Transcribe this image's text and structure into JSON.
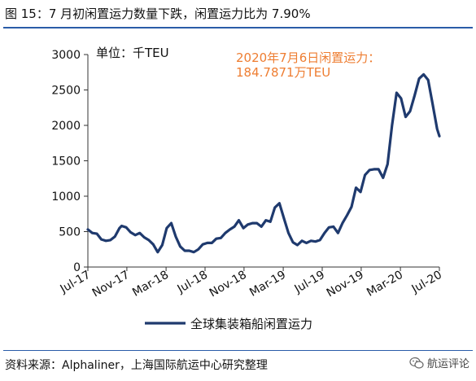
{
  "title": "图 15：7 月初闲置运力数量下跌，闲置运力比为 7.90%",
  "source": "资料来源：Alphaliner，上海国际航运中心研究整理",
  "watermark": {
    "text": "航运评论",
    "icon": "wechat-icon"
  },
  "colors": {
    "series": "#1f3a6e",
    "annotation": "#ee7d31",
    "rule": "#2a5ca8",
    "axis": "#333333"
  },
  "chart_data": {
    "type": "line",
    "unit_label": "单位：千TEU",
    "annotation": [
      "2020年7月6日闲置运力：",
      "184.7871万TEU"
    ],
    "ylim": [
      0,
      3000
    ],
    "yticks": [
      0,
      500,
      1000,
      1500,
      2000,
      2500,
      3000
    ],
    "xlim": [
      0,
      156
    ],
    "xticks": [
      {
        "label": "Jul-17",
        "x": 0
      },
      {
        "label": "Nov-17",
        "x": 17.3
      },
      {
        "label": "Mar-18",
        "x": 34.7
      },
      {
        "label": "Jul-18",
        "x": 52
      },
      {
        "label": "Nov-18",
        "x": 69.3
      },
      {
        "label": "Mar-19",
        "x": 86.7
      },
      {
        "label": "Jul-19",
        "x": 104
      },
      {
        "label": "Nov-19",
        "x": 121.3
      },
      {
        "label": "Mar-20",
        "x": 138.7
      },
      {
        "label": "Jul-20",
        "x": 156
      }
    ],
    "legend": {
      "position": "bottom",
      "entries": [
        "全球集装箱船闲置运力"
      ]
    },
    "series": [
      {
        "name": "全球集装箱船闲置运力",
        "x": [
          0,
          2,
          4,
          6,
          8,
          10,
          12,
          14,
          15,
          17,
          19,
          21,
          23,
          25,
          27,
          29,
          31,
          33,
          35,
          37,
          39,
          41,
          43,
          45,
          47,
          49,
          51,
          53,
          55,
          57,
          59,
          61,
          63,
          65,
          67,
          69,
          71,
          73,
          75,
          77,
          79,
          81,
          83,
          85,
          87,
          89,
          91,
          93,
          95,
          97,
          99,
          101,
          103,
          105,
          107,
          109,
          111,
          113,
          115,
          117,
          119,
          121,
          123,
          125,
          127,
          129,
          131,
          133,
          135,
          137,
          139,
          141,
          143,
          145,
          147,
          149,
          151,
          153,
          155,
          156
        ],
        "y": [
          530,
          480,
          470,
          390,
          370,
          380,
          430,
          550,
          580,
          560,
          490,
          450,
          480,
          420,
          380,
          320,
          210,
          310,
          550,
          620,
          430,
          290,
          230,
          230,
          210,
          250,
          320,
          340,
          340,
          400,
          410,
          480,
          530,
          570,
          660,
          550,
          600,
          620,
          620,
          570,
          660,
          640,
          840,
          900,
          690,
          480,
          350,
          310,
          370,
          340,
          370,
          360,
          380,
          480,
          560,
          570,
          480,
          620,
          730,
          850,
          1120,
          1060,
          1300,
          1370,
          1380,
          1380,
          1260,
          1450,
          2000,
          2460,
          2380,
          2120,
          2200,
          2420,
          2660,
          2720,
          2640,
          2300,
          1950,
          1848
        ]
      }
    ]
  }
}
